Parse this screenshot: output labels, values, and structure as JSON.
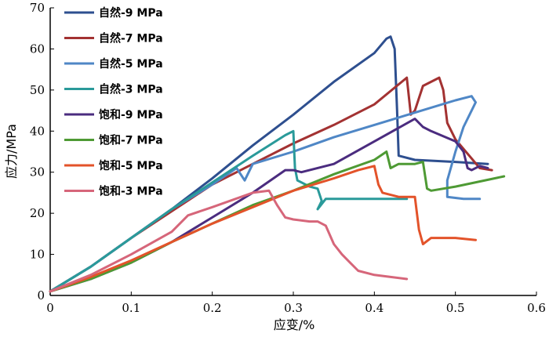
{
  "chart_data": {
    "type": "line",
    "title": "",
    "xlabel": "应变/%",
    "ylabel": "应力/MPa",
    "xlim": [
      0,
      0.6
    ],
    "ylim": [
      0,
      70
    ],
    "xticks": [
      0,
      0.1,
      0.2,
      0.3,
      0.4,
      0.5,
      0.6
    ],
    "xtick_labels": [
      "0",
      "0.1",
      "0.2",
      "0.3",
      "0.4",
      "0.5",
      "0.6"
    ],
    "yticks": [
      0,
      10,
      20,
      30,
      40,
      50,
      60,
      70
    ],
    "ytick_labels": [
      "0",
      "10",
      "20",
      "30",
      "40",
      "50",
      "60",
      "70"
    ],
    "grid": false,
    "legend_position": "top-left",
    "series": [
      {
        "name": "自然-9 MPa",
        "color": "#2e4f8f",
        "x": [
          0,
          0.05,
          0.1,
          0.15,
          0.2,
          0.25,
          0.3,
          0.35,
          0.4,
          0.415,
          0.42,
          0.425,
          0.428,
          0.43,
          0.45,
          0.5,
          0.54
        ],
        "y": [
          1,
          7,
          14,
          21,
          28.5,
          36.5,
          44,
          52,
          59,
          62.5,
          63,
          60,
          45,
          34,
          33,
          32.5,
          32
        ]
      },
      {
        "name": "自然-7 MPa",
        "color": "#a33232",
        "x": [
          0,
          0.05,
          0.1,
          0.15,
          0.2,
          0.25,
          0.3,
          0.35,
          0.4,
          0.44,
          0.445,
          0.45,
          0.46,
          0.48,
          0.485,
          0.49,
          0.5,
          0.53,
          0.545
        ],
        "y": [
          1,
          7,
          14,
          20.5,
          27,
          32,
          37,
          41.5,
          46.5,
          53,
          44,
          45,
          51,
          53,
          50,
          42,
          38,
          31,
          30.5
        ]
      },
      {
        "name": "自然-5 MPa",
        "color": "#4f87c6",
        "x": [
          0,
          0.05,
          0.1,
          0.15,
          0.2,
          0.23,
          0.24,
          0.25,
          0.3,
          0.35,
          0.4,
          0.45,
          0.5,
          0.52,
          0.525,
          0.51,
          0.5,
          0.49,
          0.49,
          0.51,
          0.53
        ],
        "y": [
          1,
          7,
          14,
          21,
          27,
          31,
          28,
          32,
          35,
          38.5,
          41.5,
          44.5,
          47.5,
          48.5,
          47,
          41,
          35,
          28,
          24,
          23.5,
          23.5
        ]
      },
      {
        "name": "自然-3 MPa",
        "color": "#2a9a9a",
        "x": [
          0,
          0.05,
          0.1,
          0.15,
          0.2,
          0.25,
          0.29,
          0.3,
          0.302,
          0.305,
          0.32,
          0.33,
          0.335,
          0.33,
          0.34,
          0.35,
          0.4,
          0.44
        ],
        "y": [
          1,
          7,
          14,
          21,
          27.5,
          34,
          39,
          40,
          31,
          28,
          26.5,
          26,
          23,
          21,
          23.5,
          23.5,
          23.5,
          23.5
        ]
      },
      {
        "name": "饱和-9 MPa",
        "color": "#4b2c7f",
        "x": [
          0,
          0.05,
          0.1,
          0.15,
          0.2,
          0.25,
          0.29,
          0.3,
          0.31,
          0.35,
          0.4,
          0.45,
          0.46,
          0.47,
          0.5,
          0.51,
          0.515,
          0.52,
          0.53,
          0.54
        ],
        "y": [
          1,
          4,
          8,
          13,
          19,
          25,
          30.5,
          30.5,
          30,
          32,
          37.5,
          43,
          41,
          40,
          37.5,
          35,
          31,
          30.5,
          31.5,
          31
        ]
      },
      {
        "name": "饱和-7 MPa",
        "color": "#4e9a34",
        "x": [
          0,
          0.05,
          0.1,
          0.15,
          0.2,
          0.25,
          0.3,
          0.35,
          0.4,
          0.415,
          0.42,
          0.43,
          0.45,
          0.46,
          0.465,
          0.47,
          0.5,
          0.56
        ],
        "y": [
          1,
          4,
          8,
          13,
          17.5,
          22,
          25.5,
          29.5,
          33,
          35,
          31,
          32,
          32,
          32.5,
          26,
          25.5,
          26.5,
          29
        ]
      },
      {
        "name": "饱和-5 MPa",
        "color": "#e3532a",
        "x": [
          0,
          0.05,
          0.1,
          0.15,
          0.2,
          0.25,
          0.3,
          0.35,
          0.38,
          0.4,
          0.405,
          0.41,
          0.43,
          0.45,
          0.455,
          0.46,
          0.47,
          0.5,
          0.525
        ],
        "y": [
          1,
          4.5,
          8.5,
          13,
          17.5,
          21.5,
          25.5,
          28.5,
          30.5,
          31.5,
          27,
          25,
          24,
          24,
          16,
          12.5,
          14,
          14,
          13.5
        ]
      },
      {
        "name": "饱和-3 MPa",
        "color": "#d6667a",
        "x": [
          0,
          0.05,
          0.1,
          0.15,
          0.17,
          0.2,
          0.25,
          0.27,
          0.28,
          0.29,
          0.3,
          0.32,
          0.33,
          0.34,
          0.35,
          0.36,
          0.37,
          0.38,
          0.4,
          0.42,
          0.44
        ],
        "y": [
          1,
          5,
          10,
          15.5,
          19.5,
          21.5,
          25,
          25.5,
          22,
          19,
          18.5,
          18,
          18,
          17,
          12.5,
          10,
          8,
          6,
          5,
          4.5,
          4
        ]
      }
    ]
  }
}
